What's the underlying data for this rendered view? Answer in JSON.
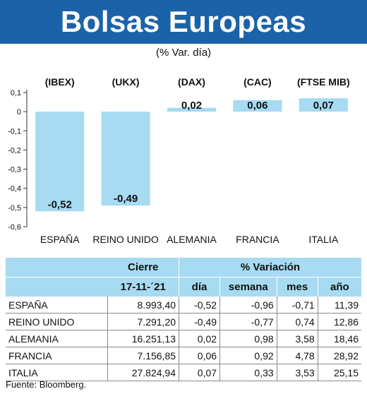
{
  "header": {
    "title": "Bolsas Europeas",
    "subtitle": "(% Var. día)"
  },
  "colors": {
    "header_bg": "#1a63a8",
    "bar": "#a6dbf2",
    "table_header": "#a6dbf2"
  },
  "chart_data": {
    "type": "bar",
    "categories": [
      "ESPAÑA",
      "REINO UNIDO",
      "ALEMANIA",
      "FRANCIA",
      "ITALIA"
    ],
    "indices": [
      "(IBEX)",
      "(UKX)",
      "(DAX)",
      "(CAC)",
      "(FTSE MIB)"
    ],
    "values": [
      -0.52,
      -0.49,
      0.02,
      0.06,
      0.07
    ],
    "value_labels": [
      "-0,52",
      "-0,49",
      "0,02",
      "0,06",
      "0,07"
    ],
    "ylim": [
      -0.6,
      0.1
    ],
    "yticks": [
      0.1,
      0,
      -0.1,
      -0.2,
      -0.3,
      -0.4,
      -0.5,
      -0.6
    ],
    "ytick_labels": [
      "0,1",
      "0",
      "-0,1",
      "-0,2",
      "-0,3",
      "-0,4",
      "-0,5",
      "-0,6"
    ],
    "grid": false
  },
  "table": {
    "group_headers": {
      "close": "Cierre",
      "variation": "% Variación"
    },
    "columns": [
      "",
      "17-11-´21",
      "día",
      "semana",
      "mes",
      "año"
    ],
    "rows": [
      {
        "name": "ESPAÑA",
        "close": "8.993,40",
        "day": "-0,52",
        "week": "-0,96",
        "month": "-0,71",
        "year": "11,39"
      },
      {
        "name": "REINO UNIDO",
        "close": "7.291,20",
        "day": "-0,49",
        "week": "-0,77",
        "month": "0,74",
        "year": "12,86"
      },
      {
        "name": "ALEMANIA",
        "close": "16.251,13",
        "day": "0,02",
        "week": "0,98",
        "month": "3,58",
        "year": "18,46"
      },
      {
        "name": "FRANCIA",
        "close": "7.156,85",
        "day": "0,06",
        "week": "0,92",
        "month": "4,78",
        "year": "28,92"
      },
      {
        "name": "ITALIA",
        "close": "27.824,94",
        "day": "0,07",
        "week": "0,33",
        "month": "3,53",
        "year": "25,15"
      }
    ]
  },
  "footer": {
    "source": "Fuente: Bloomberg."
  }
}
